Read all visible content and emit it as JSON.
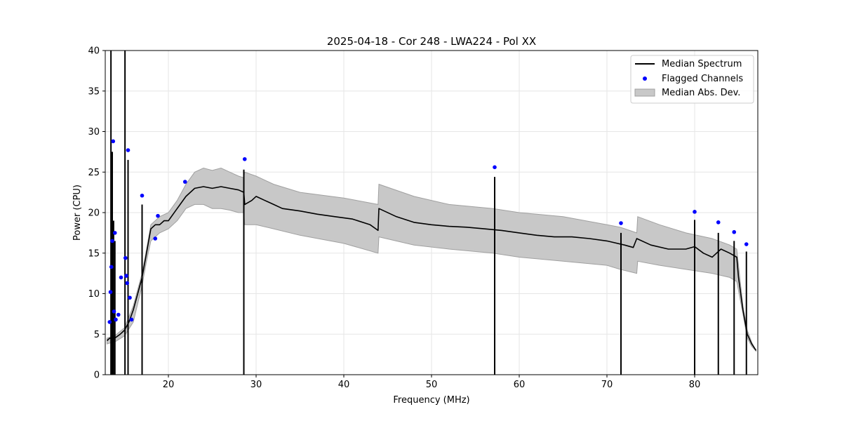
{
  "chart_data": {
    "type": "line",
    "title": "2025-04-18 - Cor 248 - LWA224 - Pol XX",
    "xlabel": "Frequency (MHz)",
    "ylabel": "Power (CPU)",
    "xlim": [
      12.8,
      87.2
    ],
    "ylim": [
      0,
      40
    ],
    "xticks": [
      20,
      30,
      40,
      50,
      60,
      70,
      80
    ],
    "yticks": [
      0,
      5,
      10,
      15,
      20,
      25,
      30,
      35,
      40
    ],
    "grid": true,
    "legend_position": "top-right",
    "legend": {
      "median": "Median Spectrum",
      "flagged": "Flagged Channels",
      "mad": "Median Abs. Dev."
    },
    "colors": {
      "median": "#000000",
      "flagged": "#0000ff",
      "mad_fill": "#c8c8c8",
      "mad_edge": "#a0a0a0",
      "grid": "#e6e6e6"
    },
    "series": [
      {
        "name": "Median Spectrum",
        "x": [
          13.0,
          13.3,
          13.6,
          14.0,
          14.5,
          15.0,
          15.5,
          16.0,
          16.5,
          17.0,
          17.5,
          18.0,
          18.5,
          19.0,
          19.5,
          20.0,
          21.0,
          22.0,
          23.0,
          24.0,
          25.0,
          26.0,
          27.0,
          28.0,
          28.6,
          28.7,
          29.5,
          30.0,
          31.0,
          32.0,
          33.0,
          35.0,
          37.0,
          39.0,
          41.0,
          43.0,
          43.9,
          44.0,
          46.0,
          48.0,
          50.0,
          52.0,
          54.0,
          56.0,
          58.0,
          60.0,
          62.0,
          64.0,
          66.0,
          68.0,
          70.0,
          72.0,
          73.0,
          73.4,
          75.0,
          77.0,
          79.0,
          80.0,
          81.0,
          82.0,
          83.0,
          84.0,
          84.8,
          85.0,
          85.5,
          86.0,
          86.5,
          87.0
        ],
        "values": [
          4.2,
          4.5,
          4.4,
          4.6,
          5.0,
          5.5,
          6.5,
          8.0,
          10.0,
          12.0,
          15.0,
          18.0,
          18.5,
          18.5,
          19.0,
          19.0,
          20.5,
          22.0,
          23.0,
          23.2,
          23.0,
          23.2,
          23.0,
          22.8,
          22.5,
          21.0,
          21.5,
          22.0,
          21.5,
          21.0,
          20.5,
          20.2,
          19.8,
          19.5,
          19.2,
          18.5,
          17.8,
          20.5,
          19.5,
          18.8,
          18.5,
          18.3,
          18.2,
          18.0,
          17.8,
          17.5,
          17.2,
          17.0,
          17.0,
          16.8,
          16.5,
          16.0,
          15.7,
          16.8,
          16.0,
          15.5,
          15.5,
          15.8,
          15.0,
          14.5,
          15.5,
          15.0,
          14.5,
          12.0,
          8.0,
          5.0,
          3.8,
          3.0
        ]
      },
      {
        "name": "Median Abs. Dev.",
        "x": [
          13.0,
          14.0,
          15.0,
          16.0,
          17.0,
          17.5,
          18.0,
          19.0,
          20.0,
          21.0,
          22.0,
          23.0,
          24.0,
          25.0,
          26.0,
          27.0,
          28.0,
          28.6,
          28.7,
          30.0,
          32.0,
          35.0,
          40.0,
          43.9,
          44.0,
          48.0,
          52.0,
          57.0,
          60.0,
          65.0,
          70.0,
          71.5,
          73.4,
          73.5,
          76.0,
          79.0,
          82.0,
          84.0,
          84.8,
          85.5,
          86.0,
          86.5,
          87.0
        ],
        "upper": [
          4.5,
          4.9,
          5.8,
          8.5,
          12.5,
          15.5,
          18.5,
          19.5,
          20.0,
          21.5,
          23.5,
          25.0,
          25.5,
          25.2,
          25.5,
          25.0,
          24.5,
          24.3,
          25.0,
          24.5,
          23.5,
          22.5,
          21.8,
          21.0,
          23.5,
          22.0,
          21.0,
          20.5,
          20.0,
          19.5,
          18.5,
          18.2,
          17.5,
          19.5,
          18.5,
          17.5,
          16.8,
          16.0,
          15.5,
          8.5,
          5.5,
          4.0,
          3.0
        ],
        "lower": [
          3.8,
          4.1,
          4.8,
          6.5,
          11.0,
          14.0,
          16.5,
          17.5,
          18.0,
          19.0,
          20.5,
          21.0,
          21.0,
          20.5,
          20.5,
          20.3,
          20.0,
          20.0,
          18.5,
          18.5,
          18.0,
          17.2,
          16.2,
          15.0,
          17.0,
          16.0,
          15.5,
          15.0,
          14.5,
          14.0,
          13.5,
          13.0,
          12.5,
          14.0,
          13.5,
          13.0,
          12.5,
          12.0,
          11.5,
          7.5,
          4.5,
          3.5,
          2.9
        ]
      },
      {
        "name": "Flagged Channels",
        "x": [
          13.3,
          13.4,
          13.5,
          13.6,
          13.7,
          13.8,
          13.9,
          14.0,
          14.3,
          14.6,
          15.1,
          15.2,
          15.3,
          15.4,
          15.6,
          15.8,
          17.0,
          18.5,
          18.8,
          21.9,
          28.7,
          57.2,
          71.6,
          80.0,
          82.7,
          84.5,
          85.9
        ],
        "values": [
          6.5,
          10.2,
          13.3,
          16.5,
          28.8,
          7.8,
          17.5,
          6.8,
          7.4,
          12.0,
          14.4,
          12.2,
          11.3,
          27.7,
          9.5,
          6.8,
          22.1,
          16.8,
          19.6,
          23.8,
          26.6,
          25.6,
          18.7,
          20.1,
          18.8,
          17.6,
          16.1
        ]
      }
    ],
    "spikes": {
      "x": [
        13.45,
        13.6,
        13.75,
        13.9,
        15.05,
        15.4,
        17.0,
        28.6,
        57.2,
        71.6,
        80.0,
        82.7,
        84.5,
        85.9
      ],
      "values": [
        40.0,
        27.5,
        19.0,
        16.5,
        40.0,
        26.5,
        21.0,
        25.3,
        24.4,
        17.5,
        19.1,
        17.5,
        16.5,
        15.2
      ]
    }
  }
}
